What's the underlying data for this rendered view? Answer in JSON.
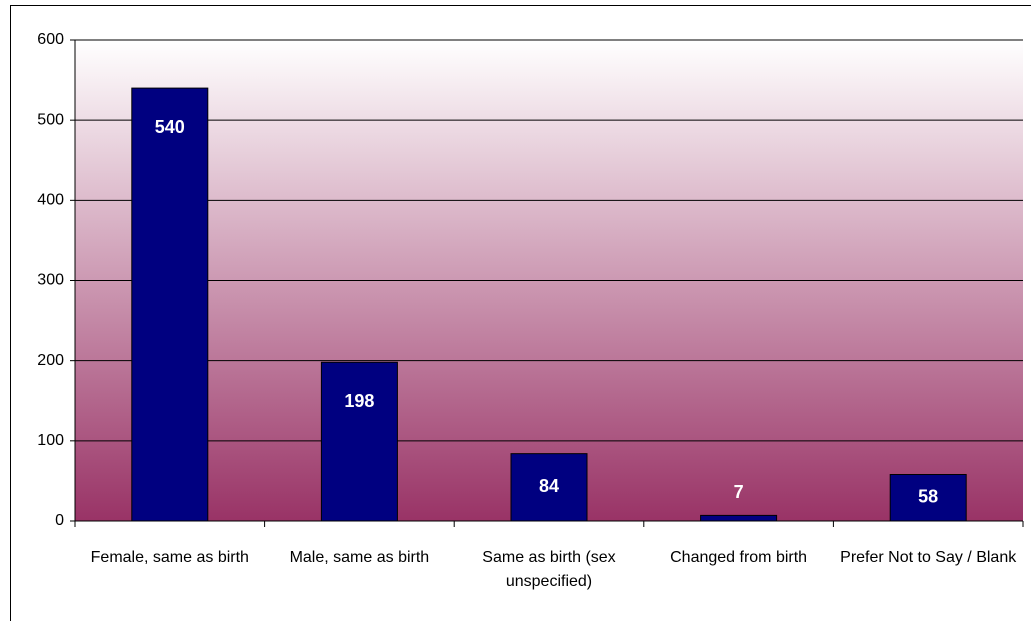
{
  "chart_data": {
    "type": "bar",
    "categories": [
      "Female, same as birth",
      "Male, same as birth",
      "Same as birth (sex unspecified)",
      "Changed from birth",
      "Prefer Not to Say / Blank"
    ],
    "values": [
      540,
      198,
      84,
      7,
      58
    ],
    "color": "#000080",
    "ylim": [
      0,
      600
    ],
    "yticks": [
      0,
      100,
      200,
      300,
      400,
      500,
      600
    ],
    "grid": true
  }
}
